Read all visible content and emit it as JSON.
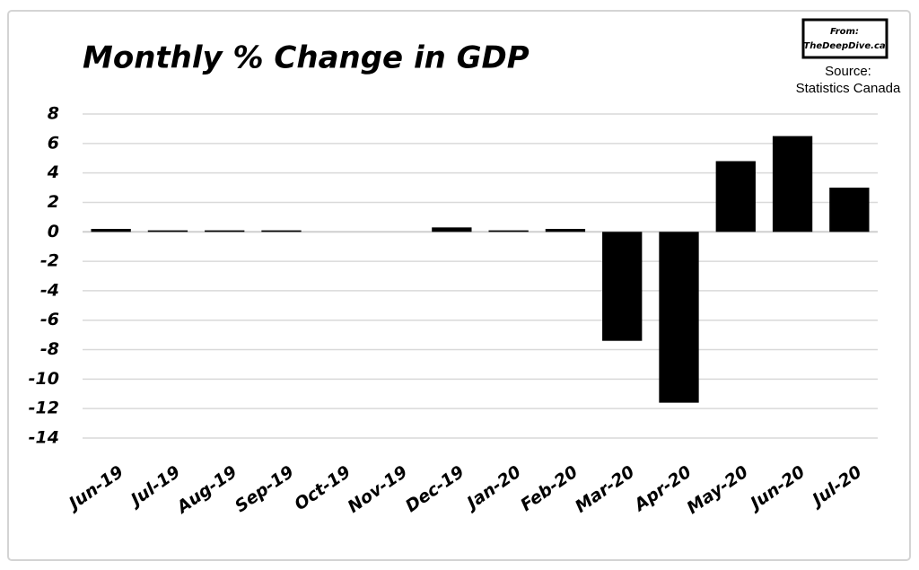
{
  "chart_data": {
    "type": "bar",
    "title": "Monthly % Change in GDP",
    "credit": {
      "label": "From:",
      "site": "TheDeepDive.ca"
    },
    "source": {
      "label": "Source:",
      "text": "Statistics Canada"
    },
    "categories": [
      "Jun-19",
      "Jul-19",
      "Aug-19",
      "Sep-19",
      "Oct-19",
      "Nov-19",
      "Dec-19",
      "Jan-20",
      "Feb-20",
      "Mar-20",
      "Apr-20",
      "May-20",
      "Jun-20",
      "Jul-20"
    ],
    "values": [
      0.2,
      0.1,
      0.1,
      0.1,
      0,
      0,
      0.3,
      0.1,
      0.2,
      -7.4,
      -11.6,
      4.8,
      6.5,
      3.0
    ],
    "color": "#000000",
    "ylim": [
      -14,
      8
    ],
    "yticks": [
      8,
      6,
      4,
      2,
      0,
      -2,
      -4,
      -6,
      -8,
      -10,
      -12,
      -14
    ],
    "grid": true
  }
}
